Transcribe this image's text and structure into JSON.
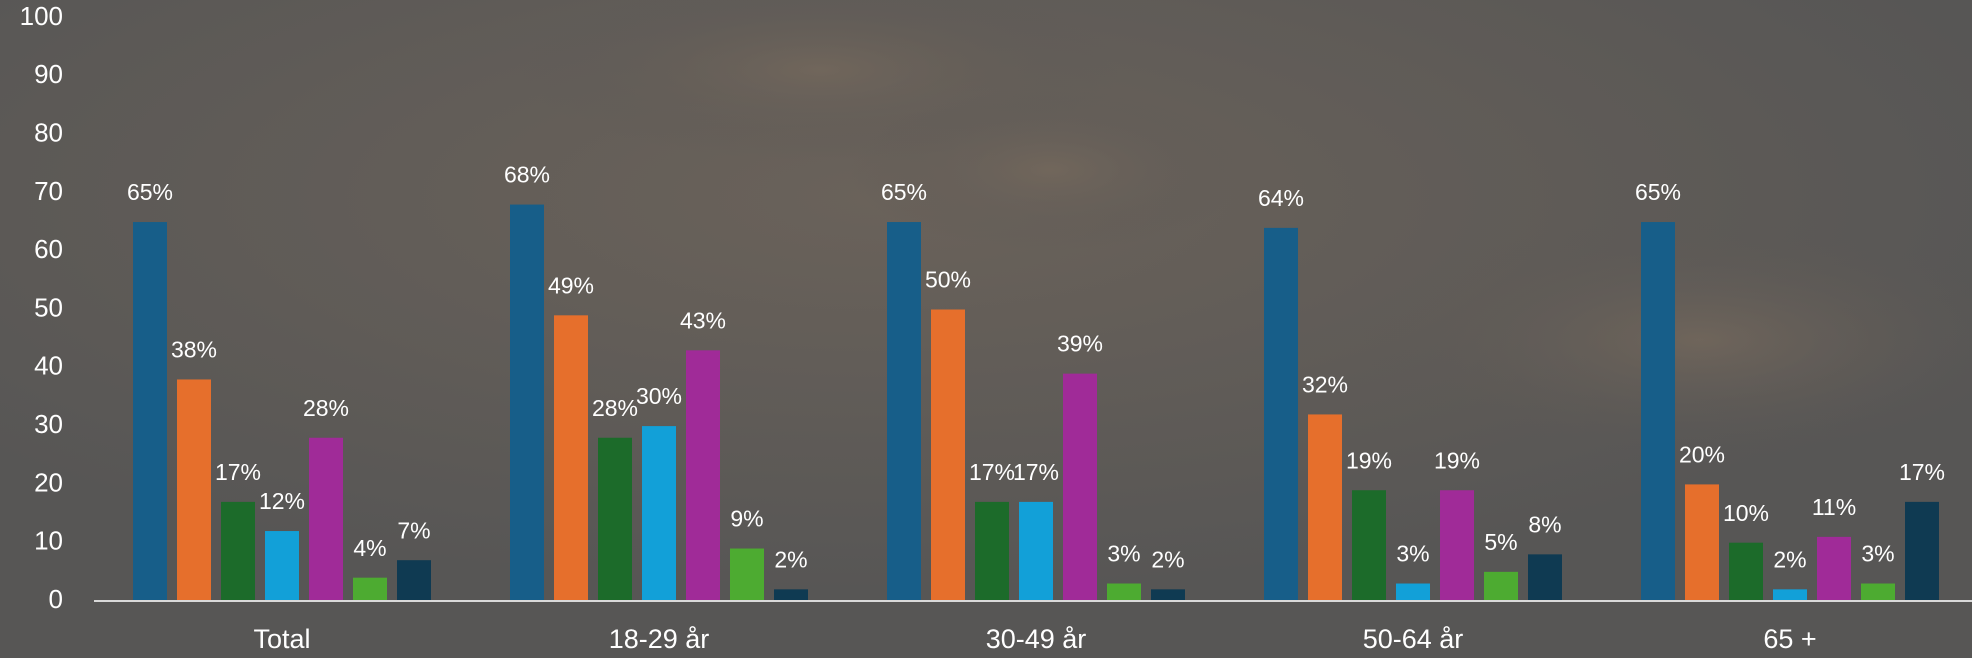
{
  "chart_data": {
    "type": "bar",
    "categories": [
      "Total",
      "18-29 år",
      "30-49 år",
      "50-64 år",
      "65 +"
    ],
    "ylim": [
      0,
      100
    ],
    "yticks": [
      0,
      10,
      20,
      30,
      40,
      50,
      60,
      70,
      80,
      90,
      100
    ],
    "grid": false,
    "series": [
      {
        "color": "#175e89",
        "values": [
          65,
          68,
          65,
          64,
          65
        ],
        "value_labels": [
          "65%",
          "68%",
          "65%",
          "64%",
          "65%"
        ]
      },
      {
        "color": "#e66f2c",
        "values": [
          38,
          49,
          50,
          32,
          20
        ],
        "value_labels": [
          "38%",
          "49%",
          "50%",
          "32%",
          "20%"
        ]
      },
      {
        "color": "#1c6b2a",
        "values": [
          17,
          28,
          17,
          19,
          10
        ],
        "value_labels": [
          "17%",
          "28%",
          "17%",
          "19%",
          "10%"
        ]
      },
      {
        "color": "#12a0d8",
        "values": [
          12,
          30,
          17,
          3,
          2
        ],
        "value_labels": [
          "12%",
          "30%",
          "17%",
          "3%",
          "2%"
        ]
      },
      {
        "color": "#a02b98",
        "values": [
          28,
          43,
          39,
          19,
          11
        ],
        "value_labels": [
          "28%",
          "43%",
          "39%",
          "19%",
          "11%"
        ]
      },
      {
        "color": "#4dab31",
        "values": [
          4,
          9,
          3,
          5,
          3
        ],
        "value_labels": [
          "4%",
          "9%",
          "3%",
          "5%",
          "3%"
        ]
      },
      {
        "color": "#0f3a52",
        "values": [
          7,
          2,
          2,
          8,
          17
        ],
        "value_labels": [
          "7%",
          "2%",
          "2%",
          "8%",
          "17%"
        ]
      }
    ]
  }
}
